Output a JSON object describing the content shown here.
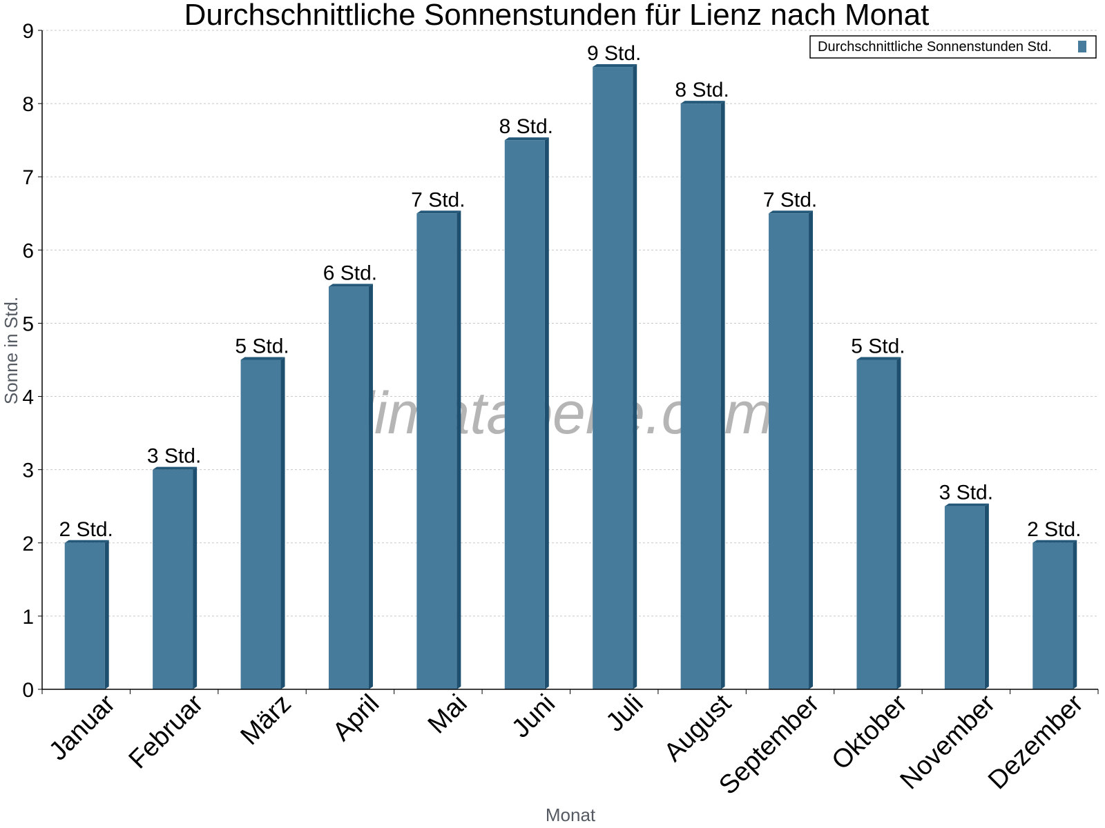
{
  "watermark": "klimatabelle.com",
  "colors": {
    "bar": "#467b9c",
    "bar_side": "#1e4f6e",
    "bar_top": "#24597a",
    "grid": "#c8c8c8",
    "axis": "#000000"
  },
  "chart_data": {
    "type": "bar",
    "title": "Durchschnittliche Sonnenstunden für Lienz nach Monat",
    "xlabel": "Monat",
    "ylabel": "Sonne in Std.",
    "ylim": [
      0,
      9
    ],
    "yticks": [
      "0",
      "1",
      "2",
      "3",
      "4",
      "5",
      "6",
      "7",
      "8",
      "9"
    ],
    "grid": true,
    "legend_position": "top-right",
    "categories": [
      "Januar",
      "Februar",
      "März",
      "April",
      "Mai",
      "Juni",
      "Juli",
      "August",
      "September",
      "Oktober",
      "November",
      "Dezember"
    ],
    "series": [
      {
        "name": "Durchschnittliche Sonnenstunden Std.",
        "values": [
          2,
          3,
          4.5,
          5.5,
          6.5,
          7.5,
          8.5,
          8,
          6.5,
          4.5,
          2.5,
          2
        ],
        "labels": [
          "2 Std.",
          "3 Std.",
          "5 Std.",
          "6 Std.",
          "7 Std.",
          "8 Std.",
          "9 Std.",
          "8 Std.",
          "7 Std.",
          "5 Std.",
          "3 Std.",
          "2 Std."
        ]
      }
    ]
  }
}
